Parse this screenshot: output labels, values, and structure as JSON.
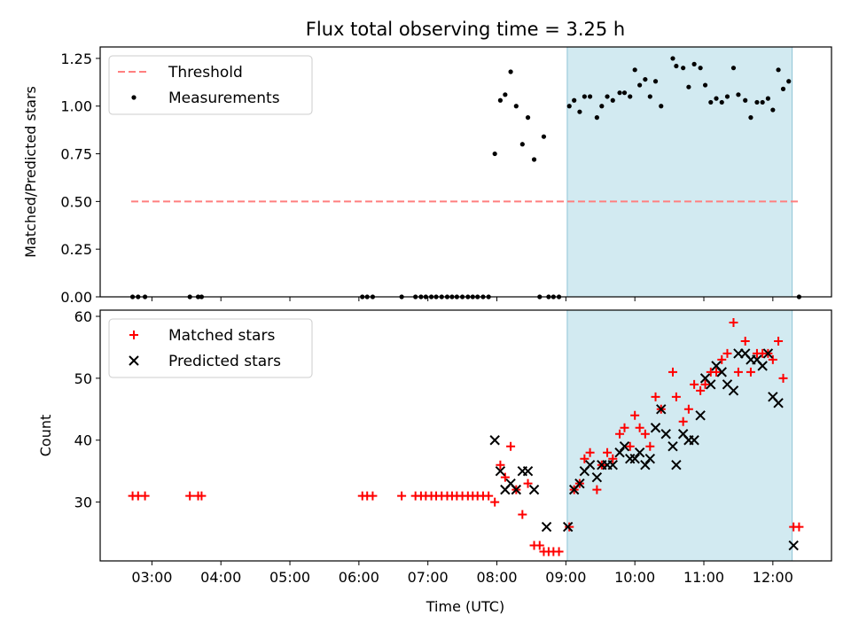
{
  "chart_data": {
    "type": "scatter",
    "title": "Flux total observing time = 3.25 h",
    "xlabel": "Time (UTC)",
    "x_unit": "hours UTC",
    "xlim": [
      2.25,
      12.85
    ],
    "xticks": [
      3,
      4,
      5,
      6,
      7,
      8,
      9,
      10,
      11,
      12
    ],
    "xtick_labels": [
      "03:00",
      "04:00",
      "05:00",
      "06:00",
      "07:00",
      "08:00",
      "09:00",
      "10:00",
      "11:00",
      "12:00"
    ],
    "observing_window": [
      9.02,
      12.28
    ],
    "panels": [
      {
        "id": "ratio",
        "ylabel": "Matched/Predicted stars",
        "ylim": [
          0,
          1.31
        ],
        "yticks": [
          0,
          0.25,
          0.5,
          0.75,
          1.0,
          1.25
        ],
        "ytick_labels": [
          "0.00",
          "0.25",
          "0.50",
          "0.75",
          "1.00",
          "1.25"
        ],
        "legend": {
          "position": "top-left",
          "entries": [
            "Threshold",
            "Measurements"
          ]
        },
        "threshold": {
          "name": "Threshold",
          "value": 0.5,
          "x_range": [
            2.7,
            12.4
          ],
          "color": "#ff7f7f"
        },
        "series": [
          {
            "name": "Measurements",
            "marker": "dot",
            "color": "#000000",
            "points": [
              [
                2.72,
                0
              ],
              [
                2.8,
                0
              ],
              [
                2.9,
                0
              ],
              [
                3.55,
                0
              ],
              [
                3.67,
                0
              ],
              [
                3.72,
                0
              ],
              [
                6.05,
                0
              ],
              [
                6.12,
                0
              ],
              [
                6.2,
                0
              ],
              [
                6.62,
                0
              ],
              [
                6.82,
                0
              ],
              [
                6.9,
                0
              ],
              [
                6.97,
                0
              ],
              [
                7.05,
                0
              ],
              [
                7.12,
                0
              ],
              [
                7.2,
                0
              ],
              [
                7.28,
                0
              ],
              [
                7.35,
                0
              ],
              [
                7.42,
                0
              ],
              [
                7.5,
                0
              ],
              [
                7.58,
                0
              ],
              [
                7.65,
                0
              ],
              [
                7.72,
                0
              ],
              [
                7.8,
                0
              ],
              [
                7.88,
                0
              ],
              [
                7.97,
                0.75
              ],
              [
                8.05,
                1.03
              ],
              [
                8.12,
                1.06
              ],
              [
                8.2,
                1.18
              ],
              [
                8.28,
                1.0
              ],
              [
                8.37,
                0.8
              ],
              [
                8.45,
                0.94
              ],
              [
                8.54,
                0.72
              ],
              [
                8.62,
                0
              ],
              [
                8.68,
                0.84
              ],
              [
                8.75,
                0
              ],
              [
                8.82,
                0
              ],
              [
                8.9,
                0
              ],
              [
                9.05,
                1.0
              ],
              [
                9.12,
                1.03
              ],
              [
                9.2,
                0.97
              ],
              [
                9.27,
                1.05
              ],
              [
                9.35,
                1.05
              ],
              [
                9.45,
                0.94
              ],
              [
                9.52,
                1.0
              ],
              [
                9.6,
                1.05
              ],
              [
                9.68,
                1.03
              ],
              [
                9.78,
                1.07
              ],
              [
                9.85,
                1.07
              ],
              [
                9.93,
                1.05
              ],
              [
                10.0,
                1.19
              ],
              [
                10.07,
                1.11
              ],
              [
                10.15,
                1.14
              ],
              [
                10.22,
                1.05
              ],
              [
                10.3,
                1.13
              ],
              [
                10.38,
                1.0
              ],
              [
                10.55,
                1.25
              ],
              [
                10.6,
                1.21
              ],
              [
                10.7,
                1.2
              ],
              [
                10.78,
                1.1
              ],
              [
                10.86,
                1.22
              ],
              [
                10.95,
                1.2
              ],
              [
                11.02,
                1.11
              ],
              [
                11.1,
                1.02
              ],
              [
                11.18,
                1.04
              ],
              [
                11.26,
                1.02
              ],
              [
                11.34,
                1.05
              ],
              [
                11.43,
                1.2
              ],
              [
                11.5,
                1.06
              ],
              [
                11.6,
                1.03
              ],
              [
                11.68,
                0.94
              ],
              [
                11.77,
                1.02
              ],
              [
                11.85,
                1.02
              ],
              [
                11.93,
                1.04
              ],
              [
                12.0,
                0.98
              ],
              [
                12.08,
                1.19
              ],
              [
                12.15,
                1.09
              ],
              [
                12.23,
                1.13
              ],
              [
                12.38,
                0
              ]
            ]
          }
        ]
      },
      {
        "id": "count",
        "ylabel": "Count",
        "ylim": [
          20.5,
          61
        ],
        "yticks": [
          30,
          40,
          50,
          60
        ],
        "ytick_labels": [
          "30",
          "40",
          "50",
          "60"
        ],
        "legend": {
          "position": "top-left",
          "entries": [
            "Matched stars",
            "Predicted stars"
          ]
        },
        "series": [
          {
            "name": "Matched stars",
            "marker": "plus",
            "color": "#ff0000",
            "points": [
              [
                2.72,
                31
              ],
              [
                2.8,
                31
              ],
              [
                2.9,
                31
              ],
              [
                3.55,
                31
              ],
              [
                3.67,
                31
              ],
              [
                3.72,
                31
              ],
              [
                6.05,
                31
              ],
              [
                6.12,
                31
              ],
              [
                6.2,
                31
              ],
              [
                6.62,
                31
              ],
              [
                6.82,
                31
              ],
              [
                6.9,
                31
              ],
              [
                6.97,
                31
              ],
              [
                7.05,
                31
              ],
              [
                7.12,
                31
              ],
              [
                7.2,
                31
              ],
              [
                7.28,
                31
              ],
              [
                7.35,
                31
              ],
              [
                7.42,
                31
              ],
              [
                7.5,
                31
              ],
              [
                7.58,
                31
              ],
              [
                7.65,
                31
              ],
              [
                7.72,
                31
              ],
              [
                7.8,
                31
              ],
              [
                7.88,
                31
              ],
              [
                7.97,
                30
              ],
              [
                8.05,
                36
              ],
              [
                8.12,
                34
              ],
              [
                8.2,
                39
              ],
              [
                8.28,
                32
              ],
              [
                8.37,
                28
              ],
              [
                8.45,
                33
              ],
              [
                8.54,
                23
              ],
              [
                8.62,
                23
              ],
              [
                8.68,
                22
              ],
              [
                8.75,
                22
              ],
              [
                8.82,
                22
              ],
              [
                8.9,
                22
              ],
              [
                9.05,
                26
              ],
              [
                9.12,
                32
              ],
              [
                9.2,
                33
              ],
              [
                9.27,
                37
              ],
              [
                9.35,
                38
              ],
              [
                9.45,
                32
              ],
              [
                9.52,
                36
              ],
              [
                9.6,
                38
              ],
              [
                9.68,
                37
              ],
              [
                9.78,
                41
              ],
              [
                9.85,
                42
              ],
              [
                9.93,
                39
              ],
              [
                10.0,
                44
              ],
              [
                10.07,
                42
              ],
              [
                10.15,
                41
              ],
              [
                10.22,
                39
              ],
              [
                10.3,
                47
              ],
              [
                10.38,
                45
              ],
              [
                10.55,
                51
              ],
              [
                10.6,
                47
              ],
              [
                10.7,
                43
              ],
              [
                10.78,
                45
              ],
              [
                10.86,
                49
              ],
              [
                10.95,
                48
              ],
              [
                11.02,
                49
              ],
              [
                11.1,
                51
              ],
              [
                11.18,
                51
              ],
              [
                11.26,
                53
              ],
              [
                11.34,
                54
              ],
              [
                11.43,
                59
              ],
              [
                11.5,
                51
              ],
              [
                11.6,
                56
              ],
              [
                11.68,
                51
              ],
              [
                11.77,
                54
              ],
              [
                11.85,
                54
              ],
              [
                11.93,
                54
              ],
              [
                12.0,
                53
              ],
              [
                12.08,
                56
              ],
              [
                12.15,
                50
              ],
              [
                12.3,
                26
              ],
              [
                12.38,
                26
              ]
            ]
          },
          {
            "name": "Predicted stars",
            "marker": "x",
            "color": "#000000",
            "points": [
              [
                7.97,
                40
              ],
              [
                8.05,
                35
              ],
              [
                8.12,
                32
              ],
              [
                8.2,
                33
              ],
              [
                8.28,
                32
              ],
              [
                8.37,
                35
              ],
              [
                8.45,
                35
              ],
              [
                8.54,
                32
              ],
              [
                8.72,
                26
              ],
              [
                9.03,
                26
              ],
              [
                9.12,
                32
              ],
              [
                9.2,
                33
              ],
              [
                9.27,
                35
              ],
              [
                9.35,
                36
              ],
              [
                9.45,
                34
              ],
              [
                9.52,
                36
              ],
              [
                9.6,
                36
              ],
              [
                9.68,
                36
              ],
              [
                9.78,
                38
              ],
              [
                9.85,
                39
              ],
              [
                9.93,
                37
              ],
              [
                10.0,
                37
              ],
              [
                10.07,
                38
              ],
              [
                10.15,
                36
              ],
              [
                10.22,
                37
              ],
              [
                10.3,
                42
              ],
              [
                10.38,
                45
              ],
              [
                10.45,
                41
              ],
              [
                10.55,
                39
              ],
              [
                10.6,
                36
              ],
              [
                10.7,
                41
              ],
              [
                10.78,
                40
              ],
              [
                10.86,
                40
              ],
              [
                10.95,
                44
              ],
              [
                11.02,
                50
              ],
              [
                11.1,
                49
              ],
              [
                11.18,
                52
              ],
              [
                11.26,
                51
              ],
              [
                11.34,
                49
              ],
              [
                11.43,
                48
              ],
              [
                11.5,
                54
              ],
              [
                11.6,
                54
              ],
              [
                11.68,
                53
              ],
              [
                11.77,
                53
              ],
              [
                11.85,
                52
              ],
              [
                11.93,
                54
              ],
              [
                12.0,
                47
              ],
              [
                12.08,
                46
              ],
              [
                12.3,
                23
              ]
            ]
          }
        ]
      }
    ]
  }
}
